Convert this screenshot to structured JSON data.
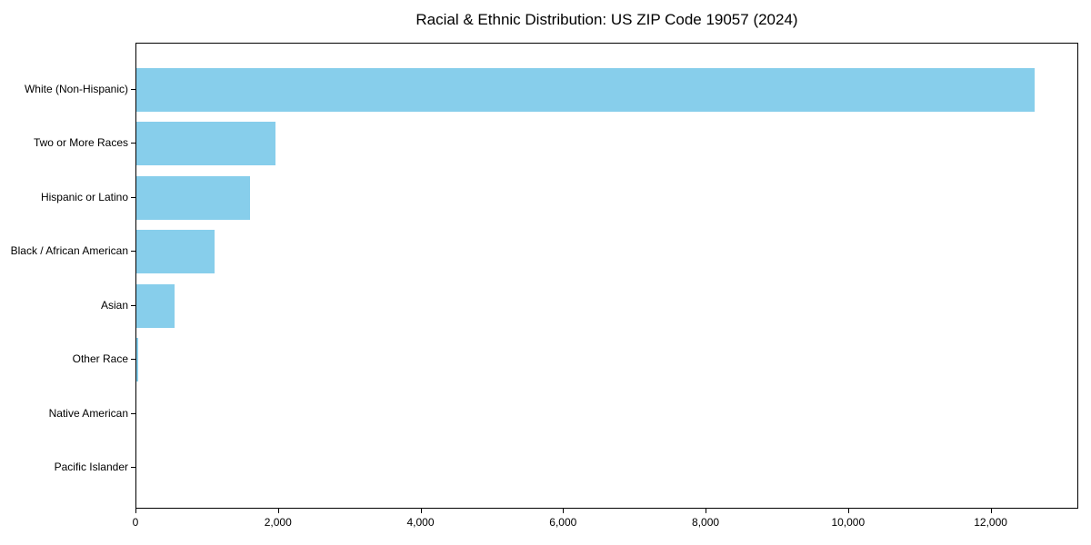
{
  "chart_data": {
    "type": "bar",
    "orientation": "horizontal",
    "title": "Racial & Ethnic Distribution: US ZIP Code 19057 (2024)",
    "categories": [
      "White (Non-Hispanic)",
      "Two or More Races",
      "Hispanic or Latino",
      "Black / African American",
      "Asian",
      "Other Race",
      "Native American",
      "Pacific Islander"
    ],
    "values": [
      12600,
      1950,
      1600,
      1100,
      530,
      30,
      0,
      0
    ],
    "xlabel": "",
    "ylabel": "",
    "xlim": [
      0,
      13230
    ],
    "xticks": [
      0,
      2000,
      4000,
      6000,
      8000,
      10000,
      12000
    ],
    "xtick_labels": [
      "0",
      "2,000",
      "4,000",
      "6,000",
      "8,000",
      "10,000",
      "12,000"
    ],
    "bar_color": "#87CEEB",
    "text_color": "#000000",
    "grid": false,
    "legend": null
  }
}
